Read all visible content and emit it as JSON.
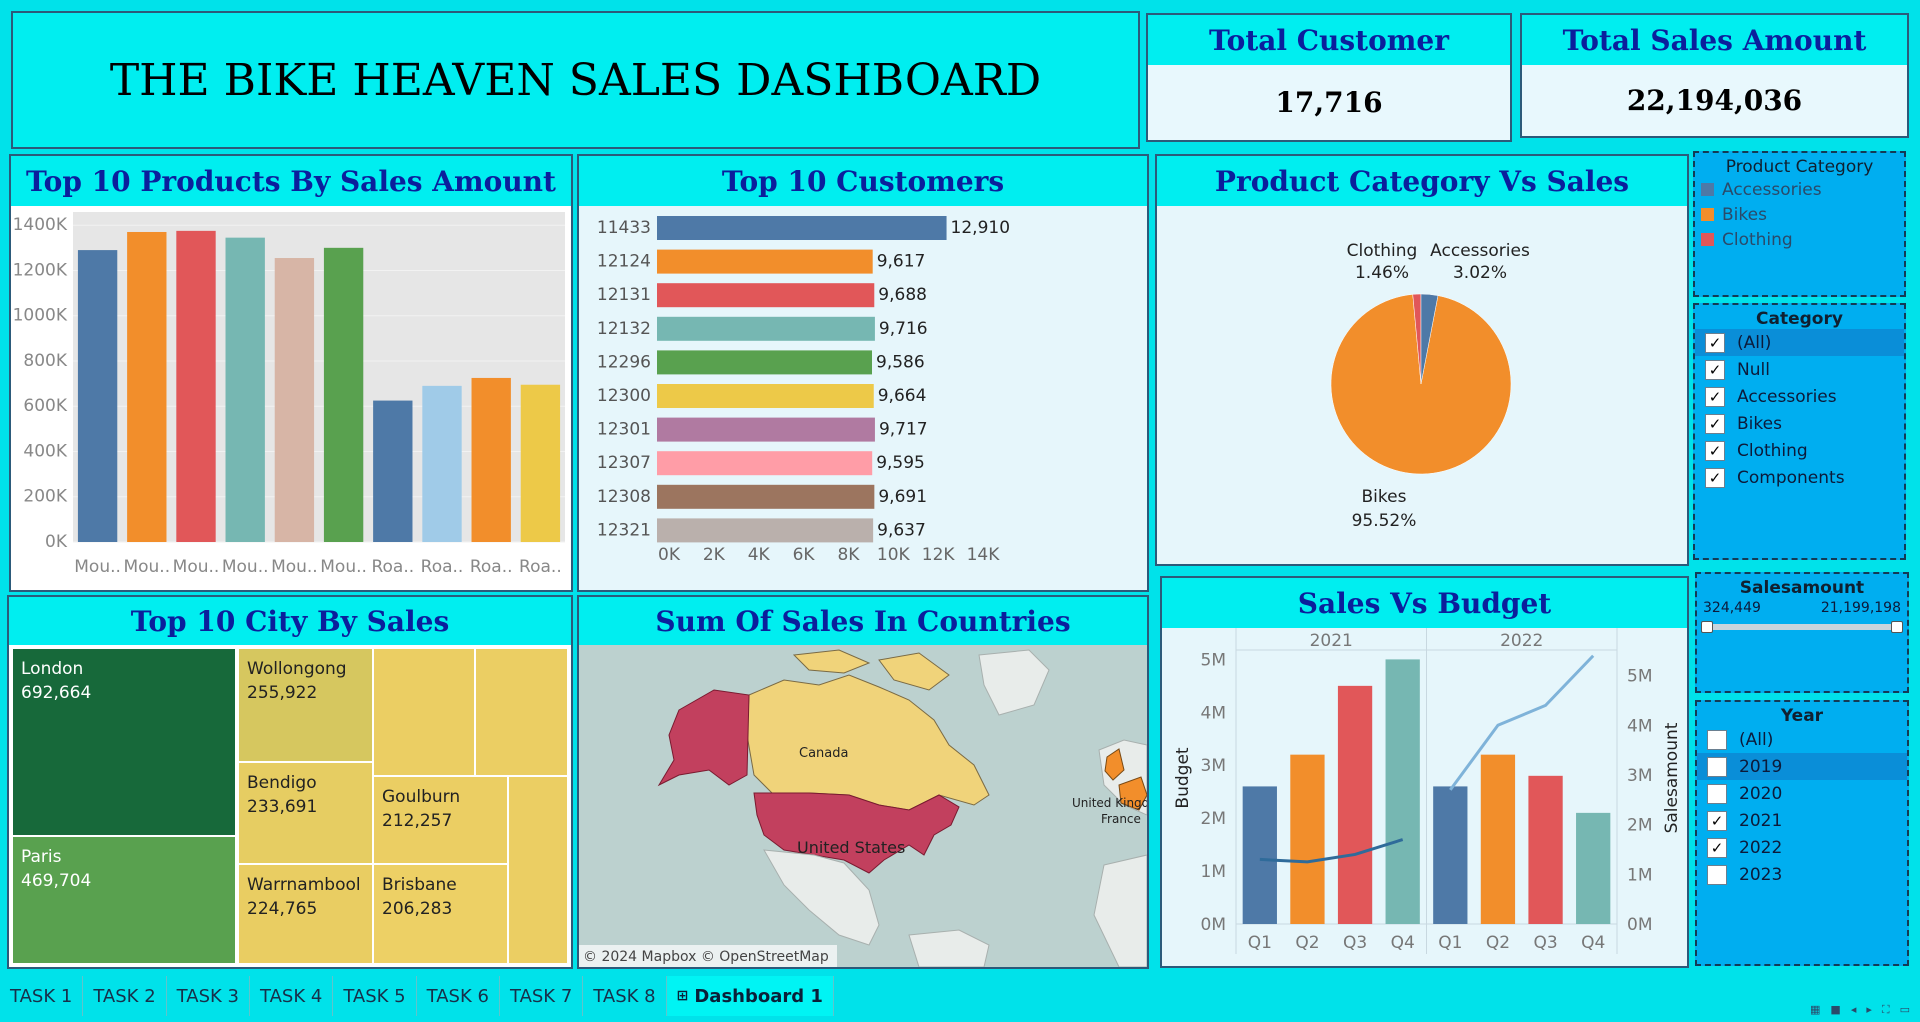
{
  "header": {
    "title": "THE BIKE HEAVEN SALES DASHBOARD"
  },
  "kpis": {
    "total_customer": {
      "label": "Total Customer",
      "value": "17,716"
    },
    "total_sales": {
      "label": "Total Sales Amount",
      "value": "22,194,036"
    }
  },
  "panels": {
    "top_products": "Top 10 Products By Sales Amount",
    "top_customers": "Top 10 Customers",
    "category_sales": "Product Category Vs Sales",
    "top_city": "Top 10 City By Sales",
    "countries": "Sum Of Sales In Countries",
    "sales_budget": "Sales Vs Budget"
  },
  "colors": {
    "blue": "#4e79a7",
    "orange": "#f28e2b",
    "red": "#e15759",
    "teal": "#76b7b2",
    "green": "#59a14f",
    "yellow": "#edc948",
    "purple": "#b07aa1",
    "pink": "#ff9da7",
    "brown": "#9c755f",
    "gray": "#bab0ac",
    "pink_tan": "#d7b5a6",
    "light_blue": "#a0cbe8"
  },
  "chart_data": [
    {
      "type": "bar",
      "categories": [
        "Mou..",
        "Mou..",
        "Mou..",
        "Mou..",
        "Mou..",
        "Mou..",
        "Roa..",
        "Roa..",
        "Roa..",
        "Roa.."
      ],
      "values": [
        1290000,
        1370000,
        1375000,
        1345000,
        1255000,
        1300000,
        625000,
        690000,
        725000,
        695000
      ],
      "colors": [
        "#4e79a7",
        "#f28e2b",
        "#e15759",
        "#76b7b2",
        "#d7b5a6",
        "#59a14f",
        "#4e79a7",
        "#a0cbe8",
        "#f28e2b",
        "#edc948"
      ],
      "y_ticks": [
        "0K",
        "200K",
        "400K",
        "600K",
        "800K",
        "1000K",
        "1200K",
        "1400K"
      ],
      "ylim": [
        0,
        1400000
      ]
    },
    {
      "type": "bar",
      "orientation": "horizontal",
      "categories": [
        "11433",
        "12124",
        "12131",
        "12132",
        "12296",
        "12300",
        "12301",
        "12307",
        "12308",
        "12321"
      ],
      "values": [
        12910,
        9617,
        9688,
        9716,
        9586,
        9664,
        9717,
        9595,
        9691,
        9637
      ],
      "value_labels": [
        "12,910",
        "9,617",
        "9,688",
        "9,716",
        "9,586",
        "9,664",
        "9,717",
        "9,595",
        "9,691",
        "9,637"
      ],
      "colors": [
        "#4e79a7",
        "#f28e2b",
        "#e15759",
        "#76b7b2",
        "#59a14f",
        "#edc948",
        "#b07aa1",
        "#ff9da7",
        "#9c755f",
        "#bab0ac"
      ],
      "x_ticks": [
        "0K",
        "2K",
        "4K",
        "6K",
        "8K",
        "10K",
        "12K",
        "14K"
      ],
      "xlim": [
        0,
        14000
      ]
    },
    {
      "type": "pie",
      "slices": [
        {
          "label": "Bikes",
          "pct_label": "95.52%",
          "value": 95.52,
          "color": "#f28e2b"
        },
        {
          "label": "Clothing",
          "pct_label": "1.46%",
          "value": 1.46,
          "color": "#e15759"
        },
        {
          "label": "Accessories",
          "pct_label": "3.02%",
          "value": 3.02,
          "color": "#4e79a7"
        }
      ]
    },
    {
      "type": "treemap",
      "cells": [
        {
          "label": "London",
          "value_label": "692,664",
          "value": 692664,
          "color": "#17693a"
        },
        {
          "label": "Paris",
          "value_label": "469,704",
          "value": 469704,
          "color": "#59a14f"
        },
        {
          "label": "Wollongong",
          "value_label": "255,922",
          "value": 255922,
          "color": "#d6c75f"
        },
        {
          "label": "Bendigo",
          "value_label": "233,691",
          "value": 233691,
          "color": "#e6cd62"
        },
        {
          "label": "Warrnambool",
          "value_label": "224,765",
          "value": 224765,
          "color": "#e9cd62"
        },
        {
          "label": "Goulburn",
          "value_label": "212,257",
          "value": 212257,
          "color": "#ebce63"
        },
        {
          "label": "Brisbane",
          "value_label": "206,283",
          "value": 206283,
          "color": "#edd065"
        }
      ]
    },
    {
      "type": "bar+line",
      "panes": [
        "2021",
        "2022"
      ],
      "categories": [
        "Q1",
        "Q2",
        "Q3",
        "Q4"
      ],
      "series": [
        {
          "name": "Budget",
          "axis": "left",
          "values_2021": [
            2600000,
            3200000,
            4500000,
            5000000
          ],
          "values_2022": [
            2600000,
            3200000,
            2800000,
            2100000
          ]
        },
        {
          "name": "Salesamount",
          "axis": "right",
          "values_2021": [
            1300000,
            1250000,
            1400000,
            1700000
          ],
          "values_2022": [
            2700000,
            4000000,
            4400000,
            5400000
          ]
        }
      ],
      "bar_colors": [
        "#4e79a7",
        "#f28e2b",
        "#e15759",
        "#76b7b2"
      ],
      "y_ticks_left": [
        "0M",
        "1M",
        "2M",
        "3M",
        "4M",
        "5M"
      ],
      "y_ticks_right": [
        "0M",
        "1M",
        "2M",
        "3M",
        "4M",
        "5M"
      ],
      "ylabel_left": "Budget",
      "ylabel_right": "Salesamount",
      "ylim": [
        0,
        5000000
      ]
    }
  ],
  "map": {
    "labels": {
      "canada": "Canada",
      "us": "United States",
      "uk": "United Kingdo",
      "france": "France"
    },
    "attribution": "© 2024 Mapbox © OpenStreetMap"
  },
  "filters": {
    "product_category": {
      "title": "Product Category",
      "items": [
        {
          "label": "Accessories",
          "color": "#4e79a7"
        },
        {
          "label": "Bikes",
          "color": "#f28e2b"
        },
        {
          "label": "Clothing",
          "color": "#e15759"
        }
      ]
    },
    "category": {
      "title": "Category",
      "items": [
        {
          "label": "(All)",
          "checked": true
        },
        {
          "label": "Null",
          "checked": true
        },
        {
          "label": "Accessories",
          "checked": true
        },
        {
          "label": "Bikes",
          "checked": true
        },
        {
          "label": "Clothing",
          "checked": true
        },
        {
          "label": "Components",
          "checked": true
        }
      ]
    },
    "salesamount": {
      "title": "Salesamount",
      "min": "324,449",
      "max": "21,199,198"
    },
    "year": {
      "title": "Year",
      "items": [
        {
          "label": "(All)",
          "checked": false
        },
        {
          "label": "2019",
          "checked": false
        },
        {
          "label": "2020",
          "checked": false
        },
        {
          "label": "2021",
          "checked": true
        },
        {
          "label": "2022",
          "checked": true
        },
        {
          "label": "2023",
          "checked": false
        }
      ]
    }
  },
  "tabs": [
    "TASK 1",
    "TASK 2",
    "TASK 3",
    "TASK 4",
    "TASK 5",
    "TASK 6",
    "TASK 7",
    "TASK 8",
    "Dashboard 1"
  ]
}
